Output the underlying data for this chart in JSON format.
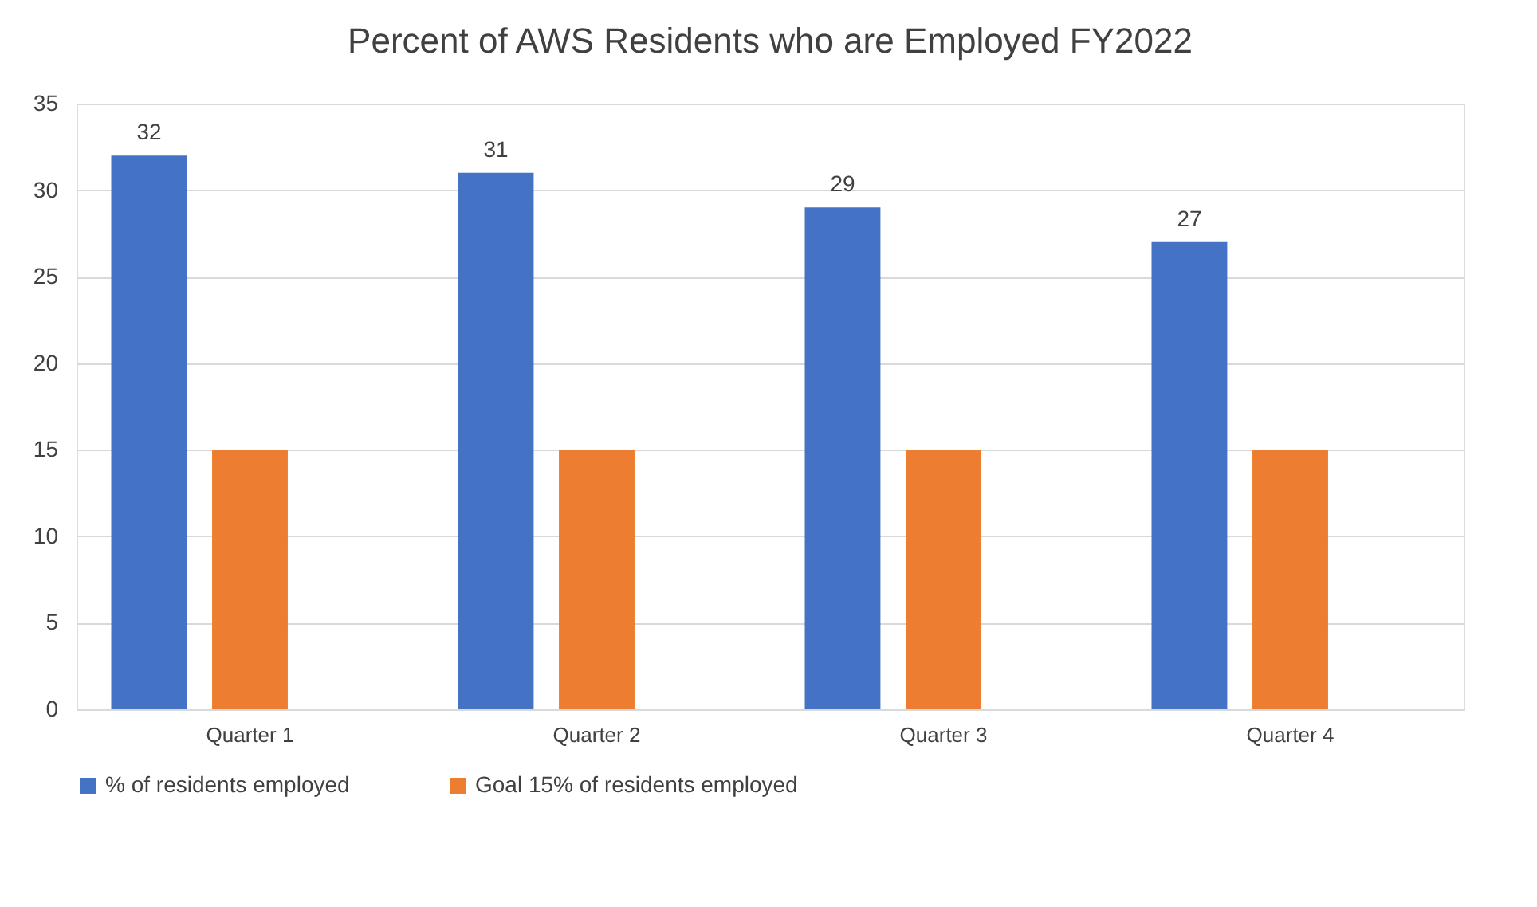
{
  "chart_data": {
    "type": "bar",
    "title": "Percent of AWS Residents who are Employed FY2022",
    "categories": [
      "Quarter 1",
      "Quarter 2",
      "Quarter 3",
      "Quarter 4"
    ],
    "series": [
      {
        "name": "% of residents employed",
        "color": "#4472c4",
        "values": [
          32,
          31,
          29,
          27
        ],
        "value_labels": [
          "32",
          "31",
          "29",
          "27"
        ]
      },
      {
        "name": "Goal 15% of residents employed",
        "color": "#ed7d31",
        "values": [
          15,
          15,
          15,
          15
        ]
      }
    ],
    "ylim": [
      0,
      35
    ],
    "yticks": [
      0,
      5,
      10,
      15,
      20,
      25,
      30,
      35
    ],
    "grid": "y",
    "legend": "bottom"
  }
}
